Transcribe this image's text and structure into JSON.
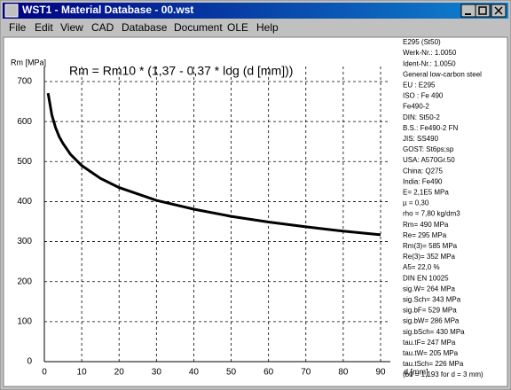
{
  "window": {
    "title": "WST1  -  Material Database  -  00.wst",
    "menu": [
      "File",
      "Edit",
      "View",
      "CAD",
      "Database",
      "Document",
      "OLE",
      "Help"
    ]
  },
  "chart_data": {
    "type": "line",
    "title": "Rm = Rm10 * (1,37 - 0,37 * log (d [mm]))",
    "y_label": "Rm [MPa]",
    "x_label": "d [mm]",
    "x": [
      1,
      2,
      3,
      4,
      5,
      7,
      10,
      15,
      20,
      30,
      40,
      50,
      60,
      70,
      80,
      90
    ],
    "values": [
      671,
      617,
      585,
      562,
      545,
      518,
      490,
      458,
      435,
      403,
      381,
      363,
      349,
      337,
      326,
      317
    ],
    "color": "#000000",
    "xlim": [
      0,
      90
    ],
    "ylim": [
      0,
      700
    ],
    "xticks": [
      0,
      10,
      20,
      30,
      40,
      50,
      60,
      70,
      80,
      90
    ],
    "yticks": [
      0,
      100,
      200,
      300,
      400,
      500,
      600,
      700
    ],
    "grid": true
  },
  "info": [
    "E295 (St50)",
    "Werk-Nr.: 1.0050",
    "Ident-Nr.: 1.0050",
    "General low-carbon steel",
    "EU : E295",
    "ISO : Fe 490",
    "Fe490-2",
    "DIN: St50-2",
    "B.S.: Fe490-2 FN",
    "JIS: SS490",
    "GOST: St6ps;sp",
    "USA: A570Gr.50",
    "China: Q275",
    "India: Fe490",
    "E= 2,1E5 MPa",
    "µ = 0,30",
    "rho = 7,80 kg/dm3",
    "Rm= 490 MPa",
    "Re= 295 MPa",
    "Rm(3)= 585 MPa",
    "Re(3)= 352 MPa",
    "A5= 22,0 %",
    "DIN EN 10025",
    "sig.W= 264 MPa",
    "sig.Sch= 343 MPa",
    "sig.bF= 529 MPa",
    "sig.bW= 286 MPa",
    "sig.bSch= 430 MPa",
    "tau.tF= 247 MPa",
    "tau.tW= 205 MPa",
    "tau.tSch= 226 MPa",
    "(b0 = 1,193 for d = 3 mm)"
  ]
}
